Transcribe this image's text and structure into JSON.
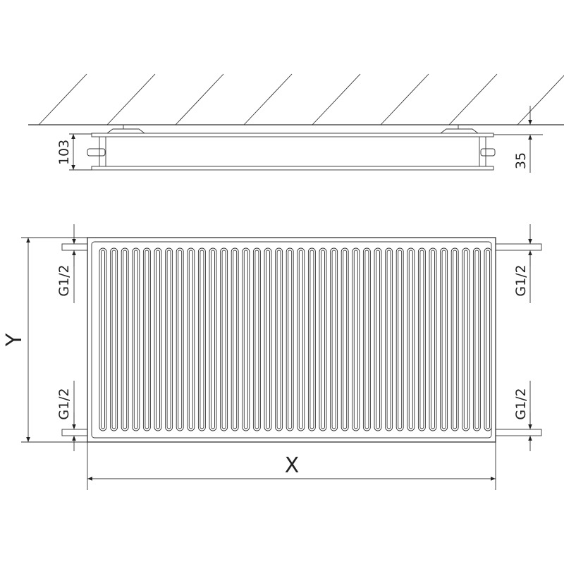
{
  "top_view": {
    "depth_label": "103",
    "wall_gap_label": "35"
  },
  "front_view": {
    "width_label": "X",
    "height_label": "Y",
    "connections": {
      "top_left": "G1/2",
      "bottom_left": "G1/2",
      "top_right": "G1/2",
      "bottom_right": "G1/2"
    }
  },
  "colors": {
    "line": "#333333",
    "background": "#ffffff"
  }
}
